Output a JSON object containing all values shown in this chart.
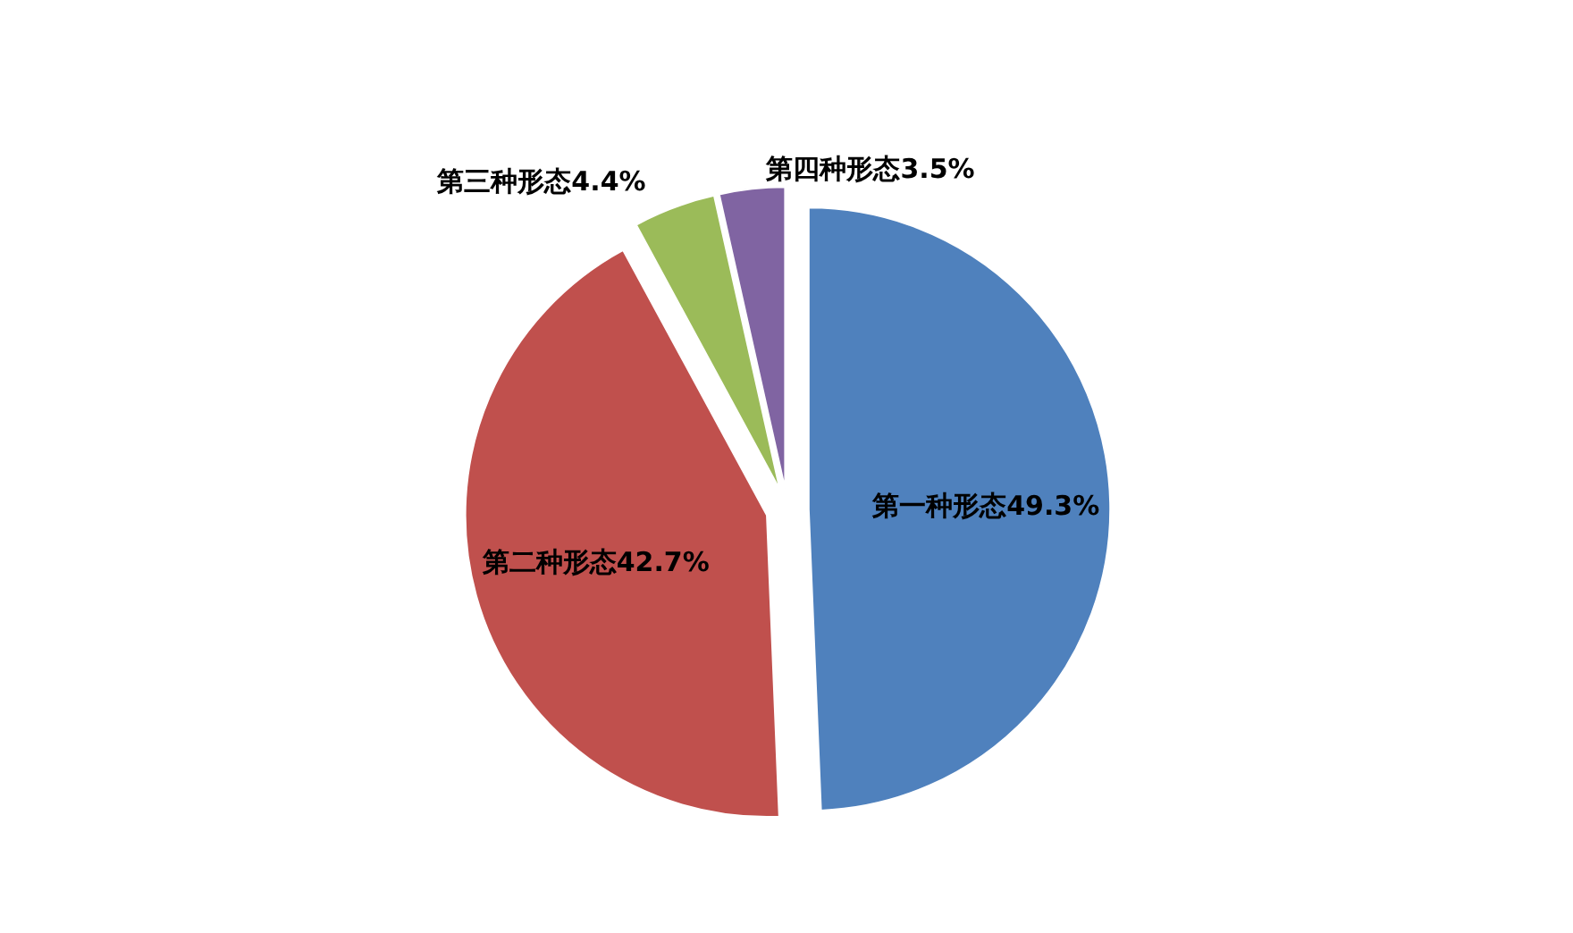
{
  "chart_data": {
    "type": "pie",
    "categories": [
      "第一种形态",
      "第二种形态",
      "第三种形态",
      "第四种形态"
    ],
    "values": [
      49.3,
      42.7,
      4.4,
      3.5
    ],
    "colors": [
      "#4f81bd",
      "#c0504d",
      "#9bbb59",
      "#8064a2"
    ],
    "value_labels": [
      "49.3%",
      "42.7%",
      "4.4%",
      "3.5%"
    ]
  }
}
